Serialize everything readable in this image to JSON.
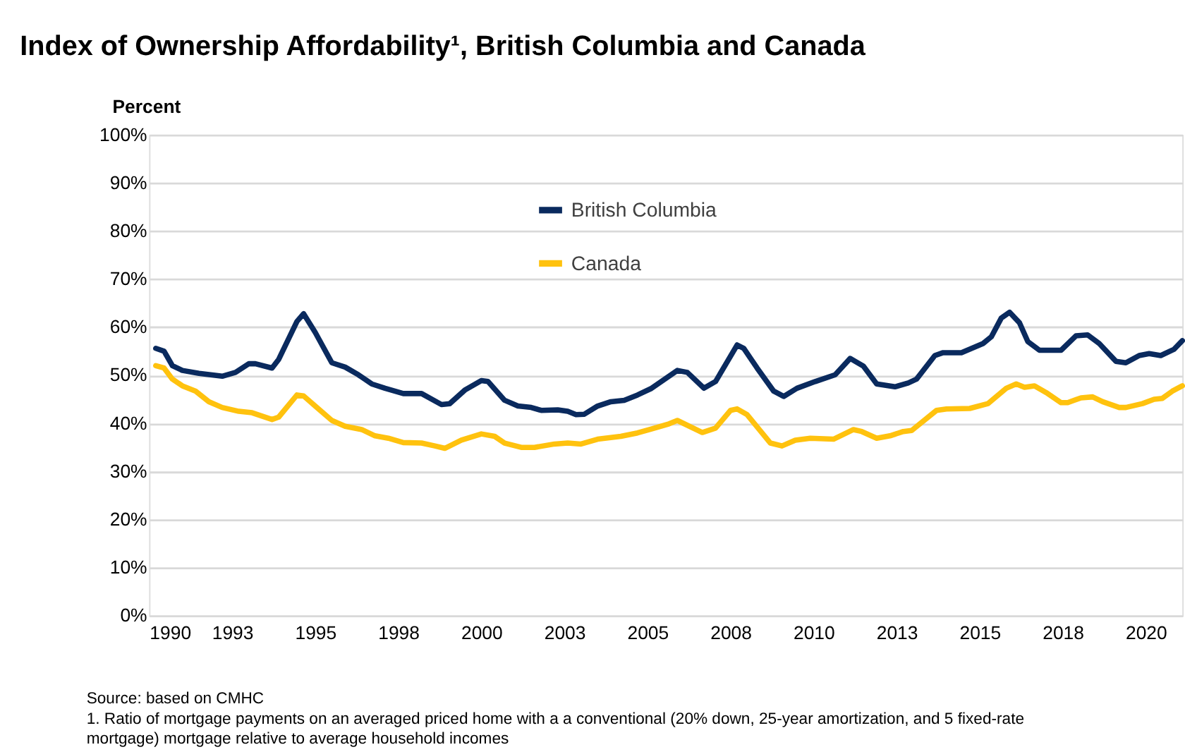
{
  "chart_data": {
    "type": "line",
    "title": "Index of Ownership Affordability¹, British Columbia and Canada",
    "ylabel": "Percent",
    "xlim": [
      1990,
      2021.1
    ],
    "ylim": [
      0,
      100
    ],
    "xticks": [
      {
        "value": 1990,
        "label": "1990"
      },
      {
        "value": 1992.5,
        "label": "1993"
      },
      {
        "value": 1995,
        "label": "1995"
      },
      {
        "value": 1997.5,
        "label": "1998"
      },
      {
        "value": 2000,
        "label": "2000"
      },
      {
        "value": 2002.5,
        "label": "2003"
      },
      {
        "value": 2005,
        "label": "2005"
      },
      {
        "value": 2007.5,
        "label": "2008"
      },
      {
        "value": 2010,
        "label": "2010"
      },
      {
        "value": 2012.5,
        "label": "2013"
      },
      {
        "value": 2015,
        "label": "2015"
      },
      {
        "value": 2017.5,
        "label": "2018"
      },
      {
        "value": 2020,
        "label": "2020"
      }
    ],
    "yticks": [
      {
        "value": 0,
        "label": "0%"
      },
      {
        "value": 10,
        "label": "10%"
      },
      {
        "value": 20,
        "label": "20%"
      },
      {
        "value": 30,
        "label": "30%"
      },
      {
        "value": 40,
        "label": "40%"
      },
      {
        "value": 50,
        "label": "50%"
      },
      {
        "value": 60,
        "label": "60%"
      },
      {
        "value": 70,
        "label": "70%"
      },
      {
        "value": 80,
        "label": "80%"
      },
      {
        "value": 90,
        "label": "90%"
      },
      {
        "value": 100,
        "label": "100%"
      }
    ],
    "grid": "y",
    "legend": "top",
    "marker": "none",
    "line_style": "solid",
    "series": [
      {
        "name": "British Columbia",
        "color": "#0a2a5e",
        "x": [
          1990.2,
          1990.45,
          1990.7,
          1991,
          1991.5,
          1992.2,
          1992.6,
          1993,
          1993.2,
          1993.7,
          1993.9,
          1994.45,
          1994.65,
          1995,
          1995.5,
          1995.9,
          1996.3,
          1996.7,
          1997.1,
          1997.65,
          1998.2,
          1998.8,
          1999.05,
          1999.5,
          2000,
          2000.2,
          2000.7,
          2001.1,
          2001.5,
          2001.8,
          2002.3,
          2002.6,
          2002.85,
          2003.1,
          2003.5,
          2003.9,
          2004.3,
          2004.7,
          2005.1,
          2005.9,
          2006.2,
          2006.7,
          2007.05,
          2007.7,
          2007.9,
          2008.3,
          2008.8,
          2009.1,
          2009.5,
          2010.05,
          2010.65,
          2011.1,
          2011.5,
          2011.9,
          2012.45,
          2012.85,
          2013.1,
          2013.65,
          2013.9,
          2014.45,
          2015.1,
          2015.35,
          2015.65,
          2015.9,
          2016.2,
          2016.45,
          2016.8,
          2017.45,
          2017.9,
          2018.25,
          2018.6,
          2019.1,
          2019.4,
          2019.8,
          2020.1,
          2020.45,
          2020.85,
          2021.1
        ],
        "values": [
          55.6,
          55,
          52,
          51,
          50.4,
          49.8,
          50.6,
          52.4,
          52.4,
          51.5,
          53.3,
          61.2,
          62.8,
          58.9,
          52.6,
          51.7,
          50.1,
          48.2,
          47.3,
          46.2,
          46.2,
          43.9,
          44.1,
          46.9,
          48.9,
          48.7,
          44.8,
          43.6,
          43.3,
          42.7,
          42.8,
          42.5,
          41.8,
          41.9,
          43.6,
          44.5,
          44.8,
          45.9,
          47.2,
          51,
          50.6,
          47.3,
          48.7,
          56.3,
          55.6,
          51.5,
          46.7,
          45.6,
          47.3,
          48.7,
          50.1,
          53.5,
          51.9,
          48.2,
          47.6,
          48.4,
          49.2,
          54.1,
          54.7,
          54.7,
          56.6,
          58,
          61.9,
          63.1,
          60.9,
          57,
          55.2,
          55.2,
          58.2,
          58.4,
          56.6,
          52.9,
          52.6,
          54.1,
          54.5,
          54.1,
          55.4,
          57.2
        ]
      },
      {
        "name": "Canada",
        "color": "#ffc20e",
        "x": [
          1990.2,
          1990.45,
          1990.7,
          1991,
          1991.4,
          1991.8,
          1992.2,
          1992.7,
          1993.1,
          1993.7,
          1993.9,
          1994.45,
          1994.65,
          1995,
          1995.5,
          1995.9,
          1996.4,
          1996.8,
          1997.2,
          1997.65,
          1998.2,
          1998.6,
          1998.9,
          1999.4,
          2000,
          2000.4,
          2000.7,
          2001.2,
          2001.6,
          2002.2,
          2002.6,
          2003,
          2003.5,
          2004.2,
          2004.7,
          2005.1,
          2005.65,
          2005.9,
          2006.65,
          2007.05,
          2007.5,
          2007.7,
          2008,
          2008.7,
          2009.05,
          2009.45,
          2009.9,
          2010.6,
          2011.2,
          2011.45,
          2011.9,
          2012.3,
          2012.7,
          2012.95,
          2013.7,
          2014,
          2014.7,
          2015.25,
          2015.8,
          2016.1,
          2016.35,
          2016.65,
          2017,
          2017.45,
          2017.65,
          2018.05,
          2018.4,
          2018.7,
          2019.2,
          2019.4,
          2019.9,
          2020.25,
          2020.5,
          2020.8,
          2021.1
        ],
        "values": [
          52,
          51.5,
          49.2,
          47.8,
          46.7,
          44.5,
          43.3,
          42.5,
          42.2,
          40.8,
          41.3,
          45.9,
          45.7,
          43.6,
          40.6,
          39.4,
          38.7,
          37.4,
          36.9,
          36,
          35.9,
          35.3,
          34.8,
          36.5,
          37.8,
          37.3,
          35.9,
          35,
          35,
          35.7,
          35.9,
          35.7,
          36.7,
          37.3,
          38,
          38.8,
          39.9,
          40.6,
          38.1,
          39,
          42.7,
          43,
          41.8,
          35.9,
          35.3,
          36.5,
          36.9,
          36.7,
          38.7,
          38.3,
          36.9,
          37.4,
          38.3,
          38.5,
          42.7,
          43,
          43.1,
          44.1,
          47.3,
          48.2,
          47.5,
          47.8,
          46.4,
          44.3,
          44.3,
          45.3,
          45.5,
          44.5,
          43.3,
          43.3,
          44.1,
          45,
          45.2,
          46.7,
          47.8
        ]
      }
    ],
    "annotations": [
      "Source: based on CMHC",
      "1. Ratio of mortgage payments on an averaged priced home with a a conventional (20% down, 25-year amortization, and 5 fixed-rate mortgage) mortgage relative to average household incomes"
    ]
  }
}
